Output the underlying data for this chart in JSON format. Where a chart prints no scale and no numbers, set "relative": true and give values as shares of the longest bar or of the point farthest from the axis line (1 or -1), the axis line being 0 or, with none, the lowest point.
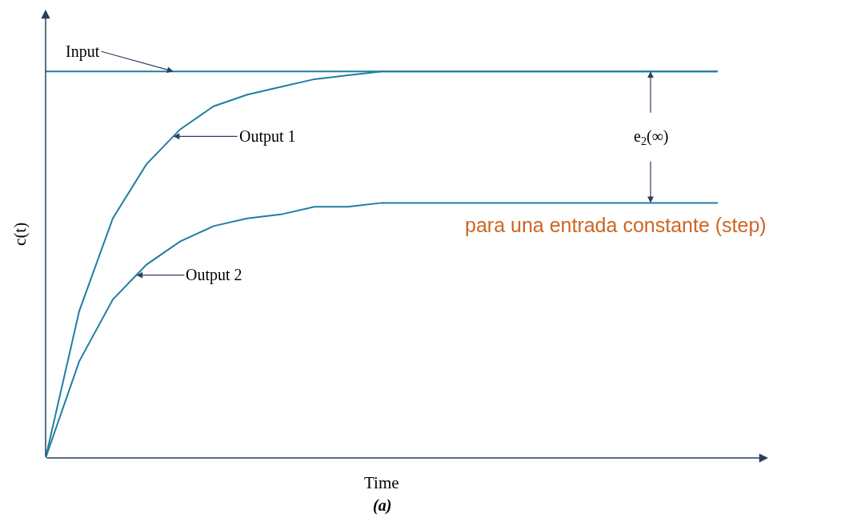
{
  "chart_data": {
    "type": "line",
    "relative": true,
    "xlabel": "Time",
    "ylabel": "c(t)",
    "categories": [
      null,
      null,
      null,
      null,
      null,
      null,
      null,
      null,
      null,
      null,
      null,
      null,
      null,
      null,
      null,
      null,
      null,
      null,
      null,
      null,
      null
    ],
    "series": [
      {
        "name": "Input",
        "color": "#1f7fa0",
        "values": [
          1,
          1,
          1,
          1,
          1,
          1,
          1,
          1,
          1,
          1,
          1,
          1,
          1,
          1,
          1,
          1,
          1,
          1,
          1,
          1,
          1
        ]
      },
      {
        "name": "Output 1",
        "color": "#1f7fa0",
        "values": [
          0,
          0.38,
          0.62,
          0.76,
          0.85,
          0.91,
          0.94,
          0.96,
          0.98,
          0.99,
          1,
          1,
          1,
          1,
          1,
          1,
          1,
          1,
          1,
          1,
          1
        ]
      },
      {
        "name": "Output 2",
        "color": "#1f7fa0",
        "values": [
          0,
          0.25,
          0.41,
          0.5,
          0.56,
          0.6,
          0.62,
          0.63,
          0.65,
          0.65,
          0.66,
          0.66,
          0.66,
          0.66,
          0.66,
          0.66,
          0.66,
          0.66,
          0.66,
          0.66,
          0.66
        ]
      }
    ],
    "annotations": [
      "e$_{2}$(∞)",
      "para una entrada constante (step)",
      "(a)"
    ],
    "legend": false,
    "tick_labels": false,
    "marker": "none",
    "line_style": "solid"
  }
}
